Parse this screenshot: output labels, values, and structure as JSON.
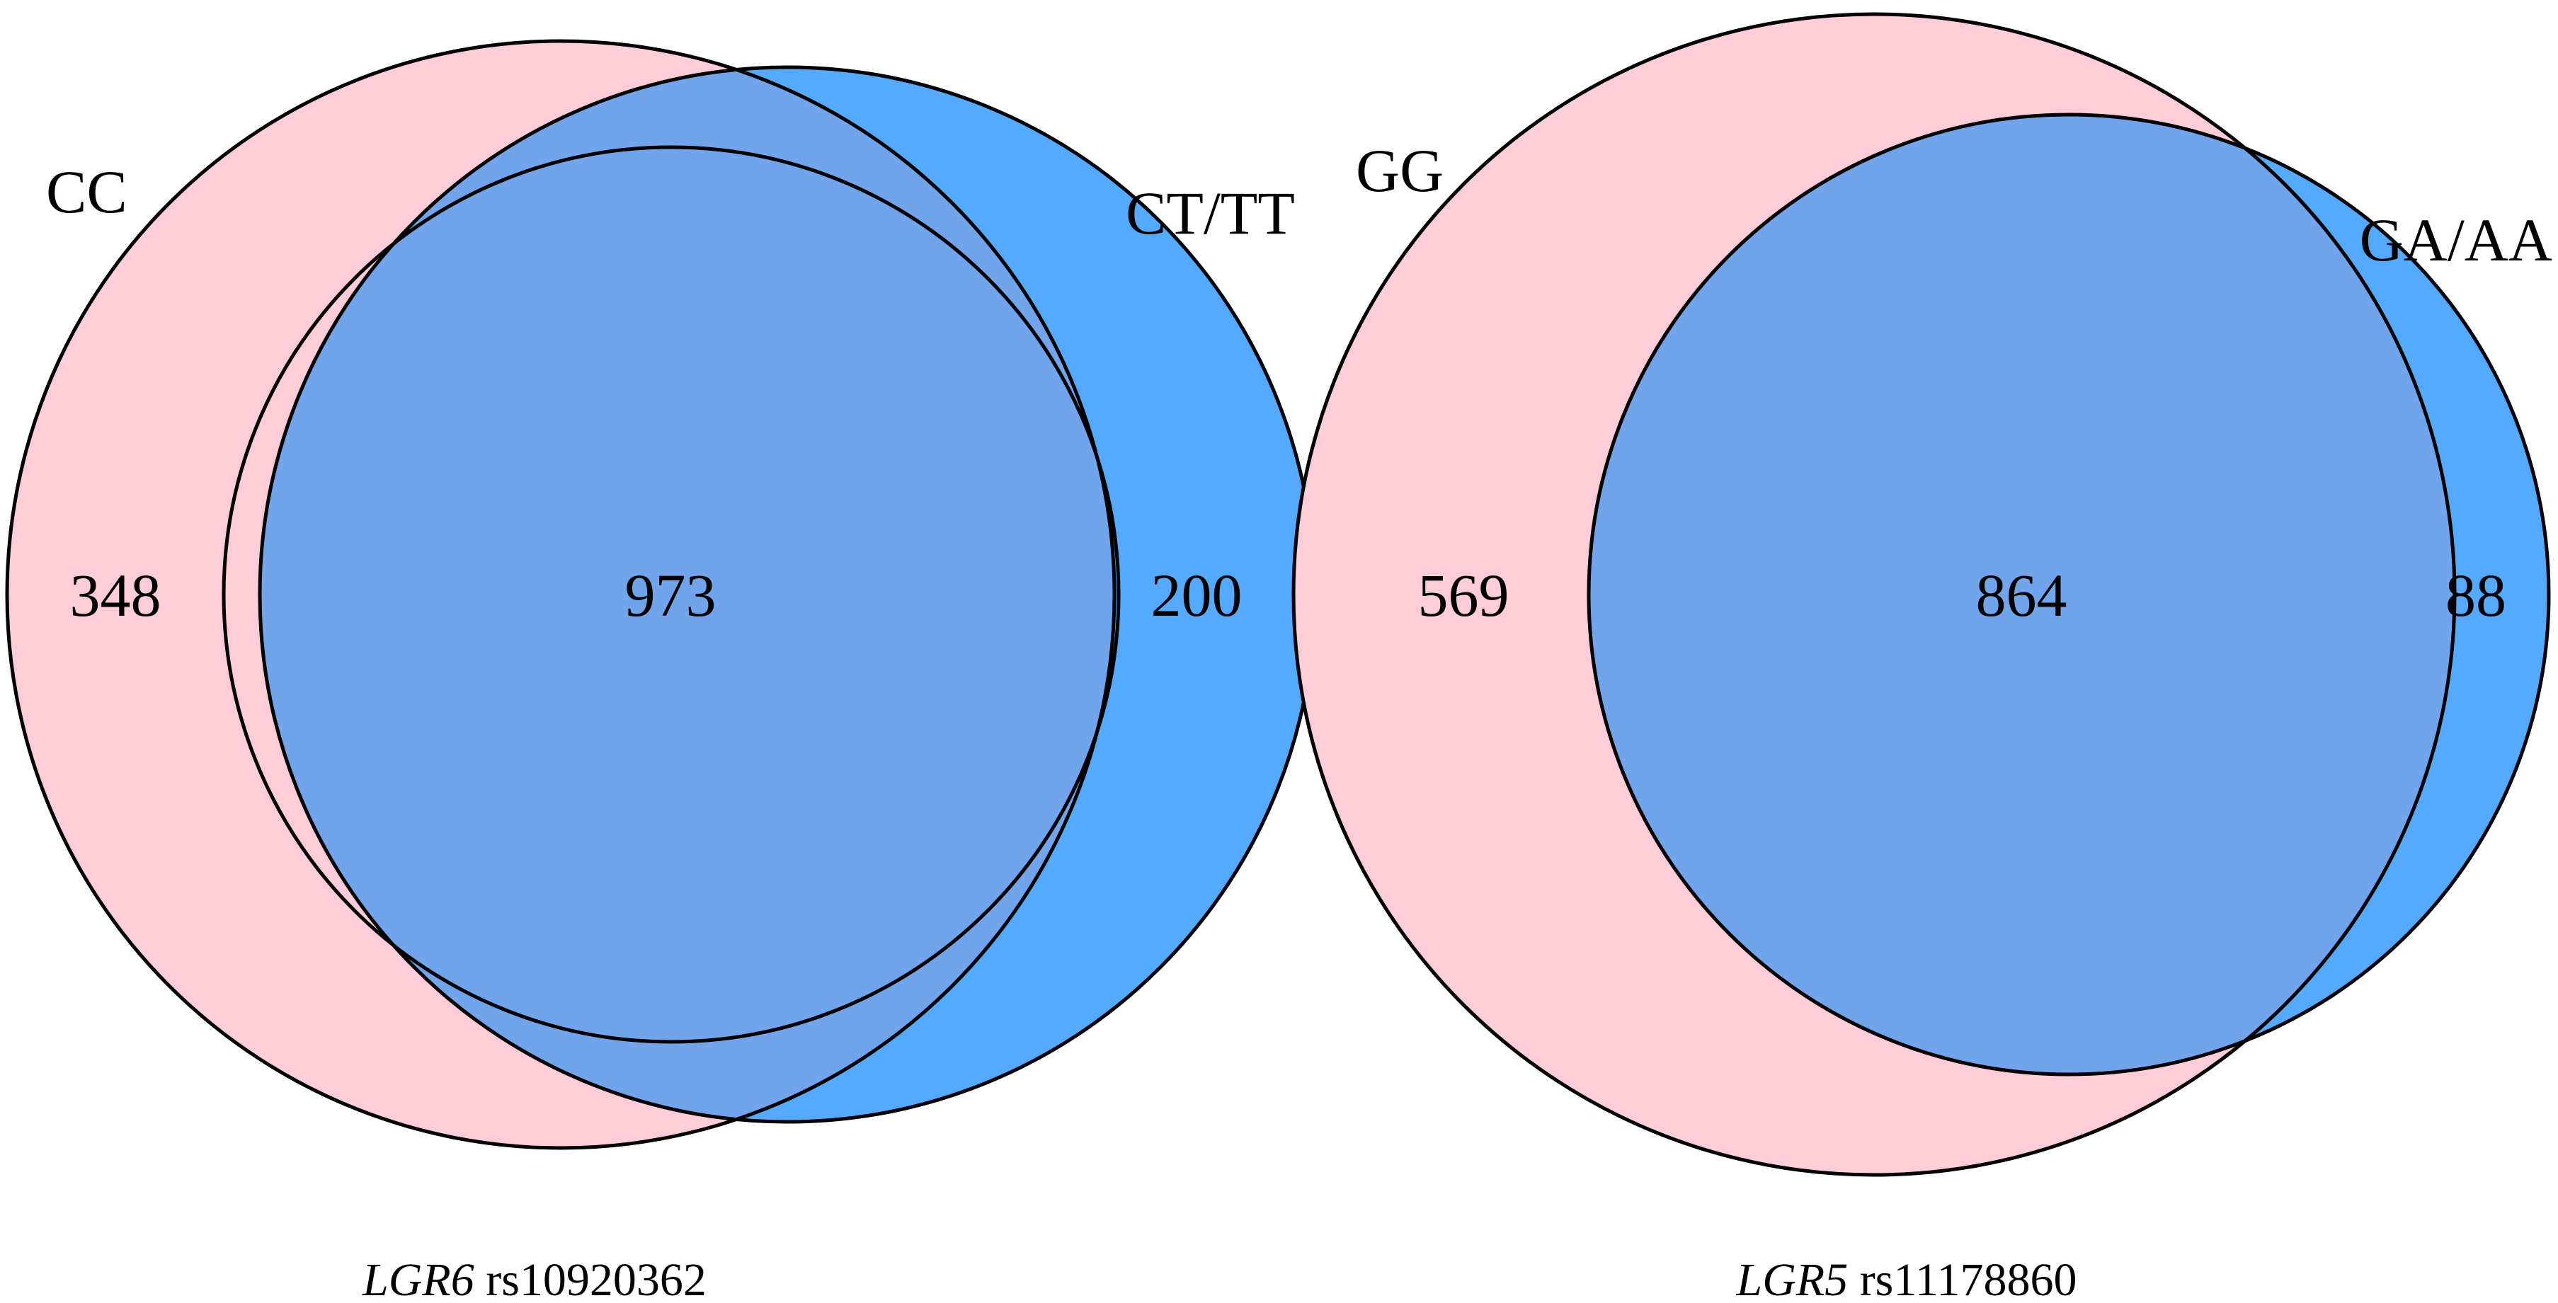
{
  "colors": {
    "set_a": "#ffcdd8",
    "set_b": "#55aaff",
    "overlap": "#72a4ec",
    "outline": "#000000"
  },
  "diagrams": [
    {
      "set_a": {
        "label": "CC",
        "count": "348"
      },
      "set_b": {
        "label": "CT/TT",
        "count": "200"
      },
      "overlap_count": "973",
      "caption": {
        "gene": "LGR6",
        "snp": "rs10920362"
      }
    },
    {
      "set_a": {
        "label": "GG",
        "count": "569"
      },
      "set_b": {
        "label": "GA/AA",
        "count": "88"
      },
      "overlap_count": "864",
      "caption": {
        "gene": "LGR5",
        "snp": "rs11178860"
      }
    }
  ]
}
